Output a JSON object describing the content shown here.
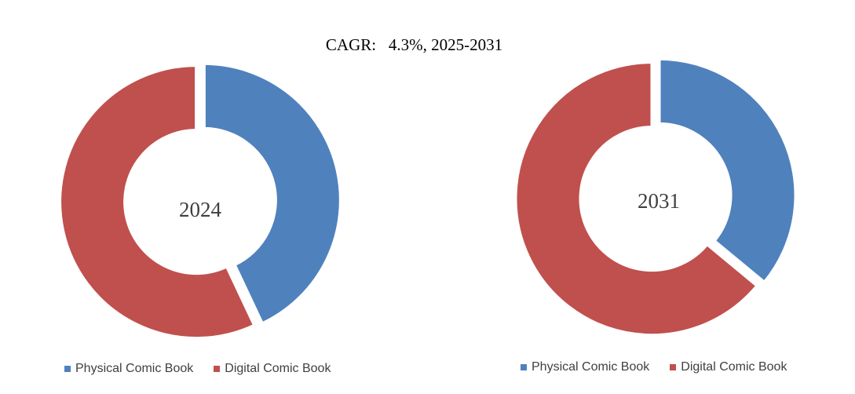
{
  "title": {
    "cagr_label": "CAGR:",
    "cagr_value": "4.3%, 2025-2031"
  },
  "colors": {
    "physical": "#4F81BD",
    "digital": "#C0504D"
  },
  "legend": {
    "physical": "Physical Comic Book",
    "digital": "Digital Comic Book"
  },
  "chart_data": [
    {
      "type": "pie",
      "donut": true,
      "center_label": "2024",
      "categories": [
        "Physical Comic Book",
        "Digital Comic Book"
      ],
      "values": [
        43,
        57
      ],
      "legend_position": "bottom"
    },
    {
      "type": "pie",
      "donut": true,
      "center_label": "2031",
      "categories": [
        "Physical Comic Book",
        "Digital Comic Book"
      ],
      "values": [
        36,
        64
      ],
      "legend_position": "bottom"
    }
  ]
}
